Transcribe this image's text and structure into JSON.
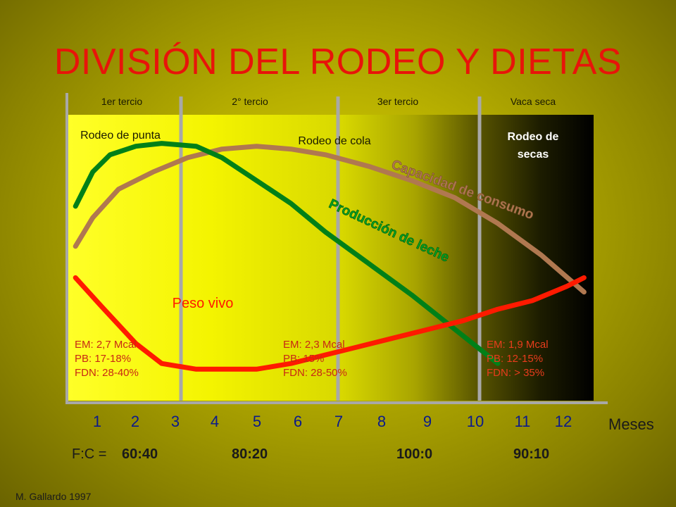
{
  "title": "DIVISIÓN DEL RODEO Y DIETAS",
  "phases": [
    "1er tercio",
    "2° tercio",
    "3er tercio",
    "Vaca seca"
  ],
  "groups": {
    "punta": "Rodeo de punta",
    "cola": "Rodeo de cola",
    "secas": "Rodeo de secas"
  },
  "diets": [
    {
      "em": "EM: 2,7 Mcal",
      "pb": "PB: 17-18%",
      "fdn": "FDN: 28-40%"
    },
    {
      "em": "EM: 2,3 Mcal",
      "pb": "PB: 15%",
      "fdn": "FDN: 28-50%"
    },
    {
      "em": "EM: 1,9 Mcal",
      "pb": "PB: 12-15%",
      "fdn": "FDN: > 35%"
    }
  ],
  "fc": {
    "prefix": "F:C =",
    "ratios": [
      "60:40",
      "80:20",
      "100:0",
      "90:10"
    ]
  },
  "credit": "M. Gallardo 1997",
  "colors": {
    "title": "#e8140a",
    "produccion": "#008018",
    "capacidad": "#b07850",
    "peso": "#ff1a00",
    "diet_text_light": "#c82814",
    "diet_text_dark": "#e83c1c"
  },
  "chart_data": {
    "type": "line",
    "x": [
      1,
      2,
      3,
      4,
      5,
      6,
      7,
      8,
      9,
      10,
      11,
      12
    ],
    "xlabel": "Meses",
    "ylabel": "",
    "series": [
      {
        "name": "Producción de leche",
        "x": [
          0.2,
          0.6,
          1.0,
          1.6,
          2.2,
          3.0,
          3.6,
          4.4,
          5.2,
          6.0,
          7.0,
          8.0,
          9.0,
          10.0
        ],
        "values": [
          0.68,
          0.8,
          0.86,
          0.89,
          0.9,
          0.89,
          0.85,
          0.77,
          0.69,
          0.59,
          0.48,
          0.37,
          0.25,
          0.13
        ]
      },
      {
        "name": "Capacidad de consumo",
        "x": [
          0.2,
          0.6,
          1.2,
          2.0,
          2.8,
          3.6,
          4.4,
          5.2,
          6.0,
          7.0,
          8.0,
          9.0,
          10.0,
          11.0,
          12.0
        ],
        "values": [
          0.54,
          0.64,
          0.74,
          0.8,
          0.85,
          0.88,
          0.89,
          0.88,
          0.86,
          0.82,
          0.77,
          0.71,
          0.62,
          0.51,
          0.38
        ]
      },
      {
        "name": "Peso vivo",
        "x": [
          0.2,
          0.8,
          1.6,
          2.2,
          3.0,
          3.6,
          4.4,
          5.2,
          6.0,
          6.8,
          7.6,
          8.4,
          9.2,
          10.0,
          10.8,
          11.6,
          12.0
        ],
        "values": [
          0.43,
          0.33,
          0.2,
          0.13,
          0.11,
          0.11,
          0.11,
          0.13,
          0.16,
          0.19,
          0.22,
          0.25,
          0.28,
          0.32,
          0.35,
          0.4,
          0.43
        ]
      }
    ]
  }
}
